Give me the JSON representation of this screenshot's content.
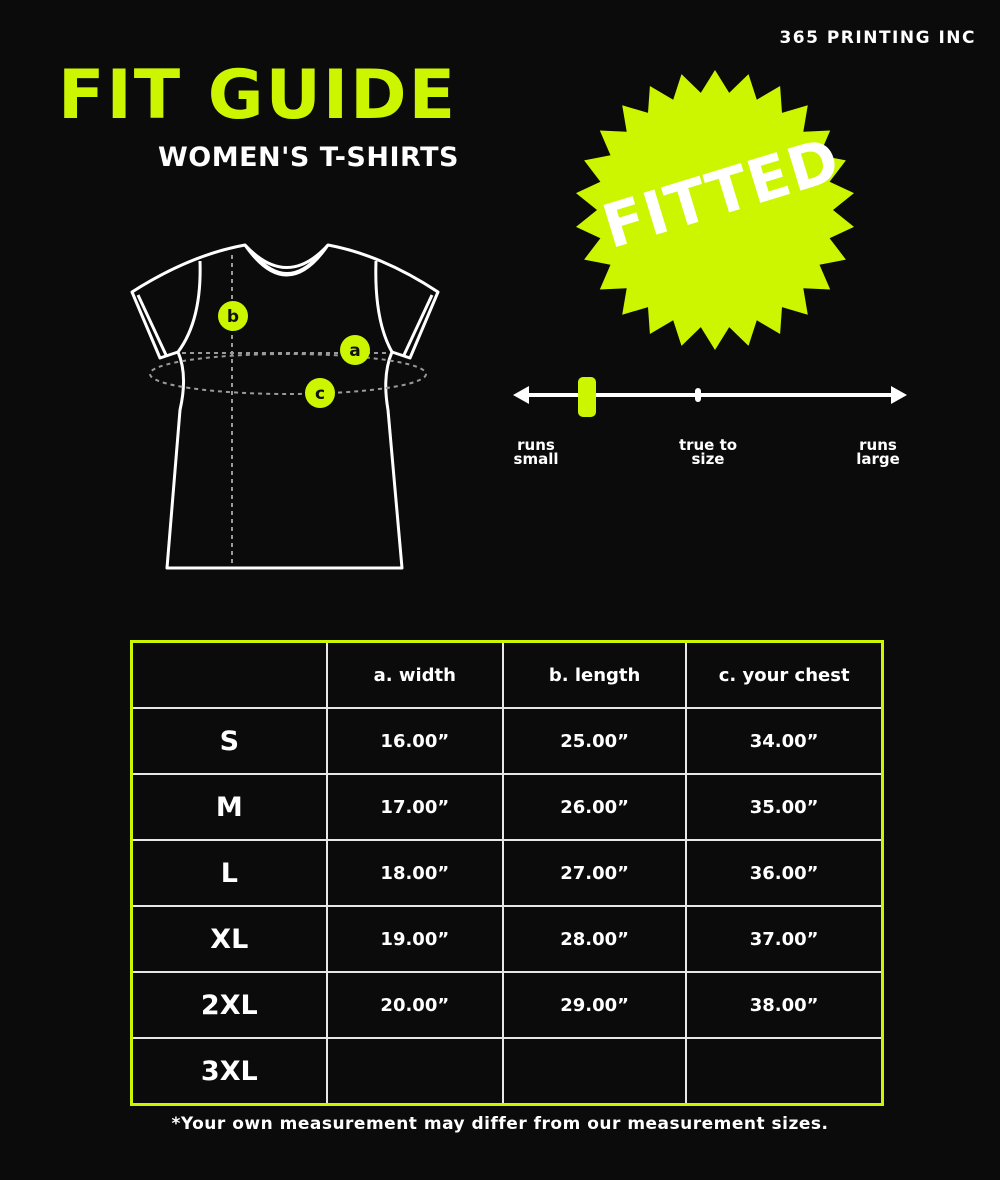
{
  "brand": "365 PRINTING INC",
  "title": "FIT GUIDE",
  "subtitle": "WOMEN'S T-SHIRTS",
  "badge": "FITTED",
  "accent_color": "#ccf600",
  "diagram": {
    "labels": [
      "a",
      "b",
      "c"
    ]
  },
  "fit_scale": {
    "labels": {
      "left": [
        "runs",
        "small"
      ],
      "middle": [
        "true to",
        "size"
      ],
      "right": [
        "runs",
        "large"
      ]
    },
    "level": 0.18
  },
  "table": {
    "headers": [
      "",
      "a. width",
      "b. length",
      "c. your chest"
    ],
    "rows": [
      {
        "size": "S",
        "width": "16.00”",
        "length": "25.00”",
        "chest": "34.00”"
      },
      {
        "size": "M",
        "width": "17.00”",
        "length": "26.00”",
        "chest": "35.00”"
      },
      {
        "size": "L",
        "width": "18.00”",
        "length": "27.00”",
        "chest": "36.00”"
      },
      {
        "size": "XL",
        "width": "19.00”",
        "length": "28.00”",
        "chest": "37.00”"
      },
      {
        "size": "2XL",
        "width": "20.00”",
        "length": "29.00”",
        "chest": "38.00”"
      },
      {
        "size": "3XL",
        "width": "",
        "length": "",
        "chest": ""
      }
    ]
  },
  "footnote": "*Your own measurement may differ from our measurement sizes."
}
